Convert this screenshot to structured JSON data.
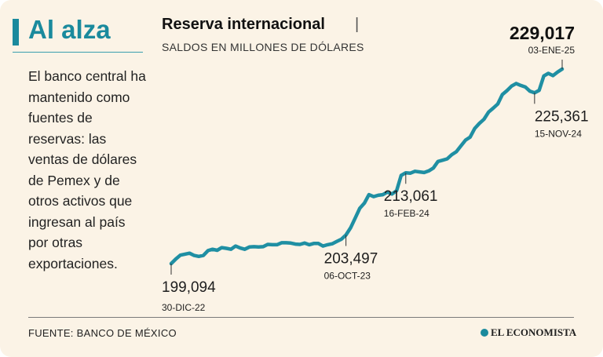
{
  "sidebar": {
    "title": "Al alza",
    "text": "El banco central ha mantenido como fuentes de reservas: las ventas de dólares de Pemex y de otros activos que ingresan al país por otras exportaciones."
  },
  "header": {
    "title": "Reserva internacional",
    "separator": "|",
    "subtitle": "SALDOS EN MILLONES DE DÓLARES"
  },
  "footer": {
    "source": "FUENTE: BANCO DE MÉXICO",
    "brand": "EL ECONOMISTA"
  },
  "colors": {
    "accent": "#1a8a9d",
    "line": "#1f8fa3",
    "background": "#fbf3e6"
  },
  "chart_data": {
    "type": "line",
    "title": "Reserva internacional",
    "subtitle": "SALDOS EN MILLONES DE DÓLARES",
    "xlabel": "",
    "ylabel": "",
    "grid": false,
    "ylim": [
      199094,
      229017
    ],
    "series": [
      {
        "values": [
          199094,
          199800,
          200400,
          200550,
          200700,
          200350,
          200200,
          200350,
          201100,
          201300,
          201150,
          201550,
          201450,
          201300,
          201800,
          201500,
          201300,
          201650,
          201700,
          201650,
          201700,
          202050,
          202000,
          202000,
          202300,
          202300,
          202250,
          202100,
          202050,
          202250,
          202000,
          202200,
          202200,
          201800,
          202000,
          202150,
          202500,
          202850,
          203497,
          204600,
          206100,
          207600,
          208400,
          209700,
          209400,
          209600,
          209700,
          210100,
          209800,
          210300,
          212650,
          213061,
          213000,
          213300,
          213200,
          213100,
          213350,
          213800,
          214800,
          215000,
          215200,
          215850,
          216300,
          217200,
          218100,
          218550,
          219900,
          220650,
          221300,
          222400,
          223000,
          223650,
          225100,
          225700,
          226400,
          226800,
          226500,
          226250,
          225600,
          225361,
          225750,
          227950,
          228350,
          228000,
          228550,
          229017
        ]
      }
    ],
    "annotations": [
      {
        "value": "199,094",
        "date": "30-DIC-22"
      },
      {
        "value": "203,497",
        "date": "06-OCT-23"
      },
      {
        "value": "213,061",
        "date": "16-FEB-24"
      },
      {
        "value": "225,361",
        "date": "15-NOV-24"
      },
      {
        "value": "229,017",
        "date": "03-ENE-25"
      }
    ]
  }
}
